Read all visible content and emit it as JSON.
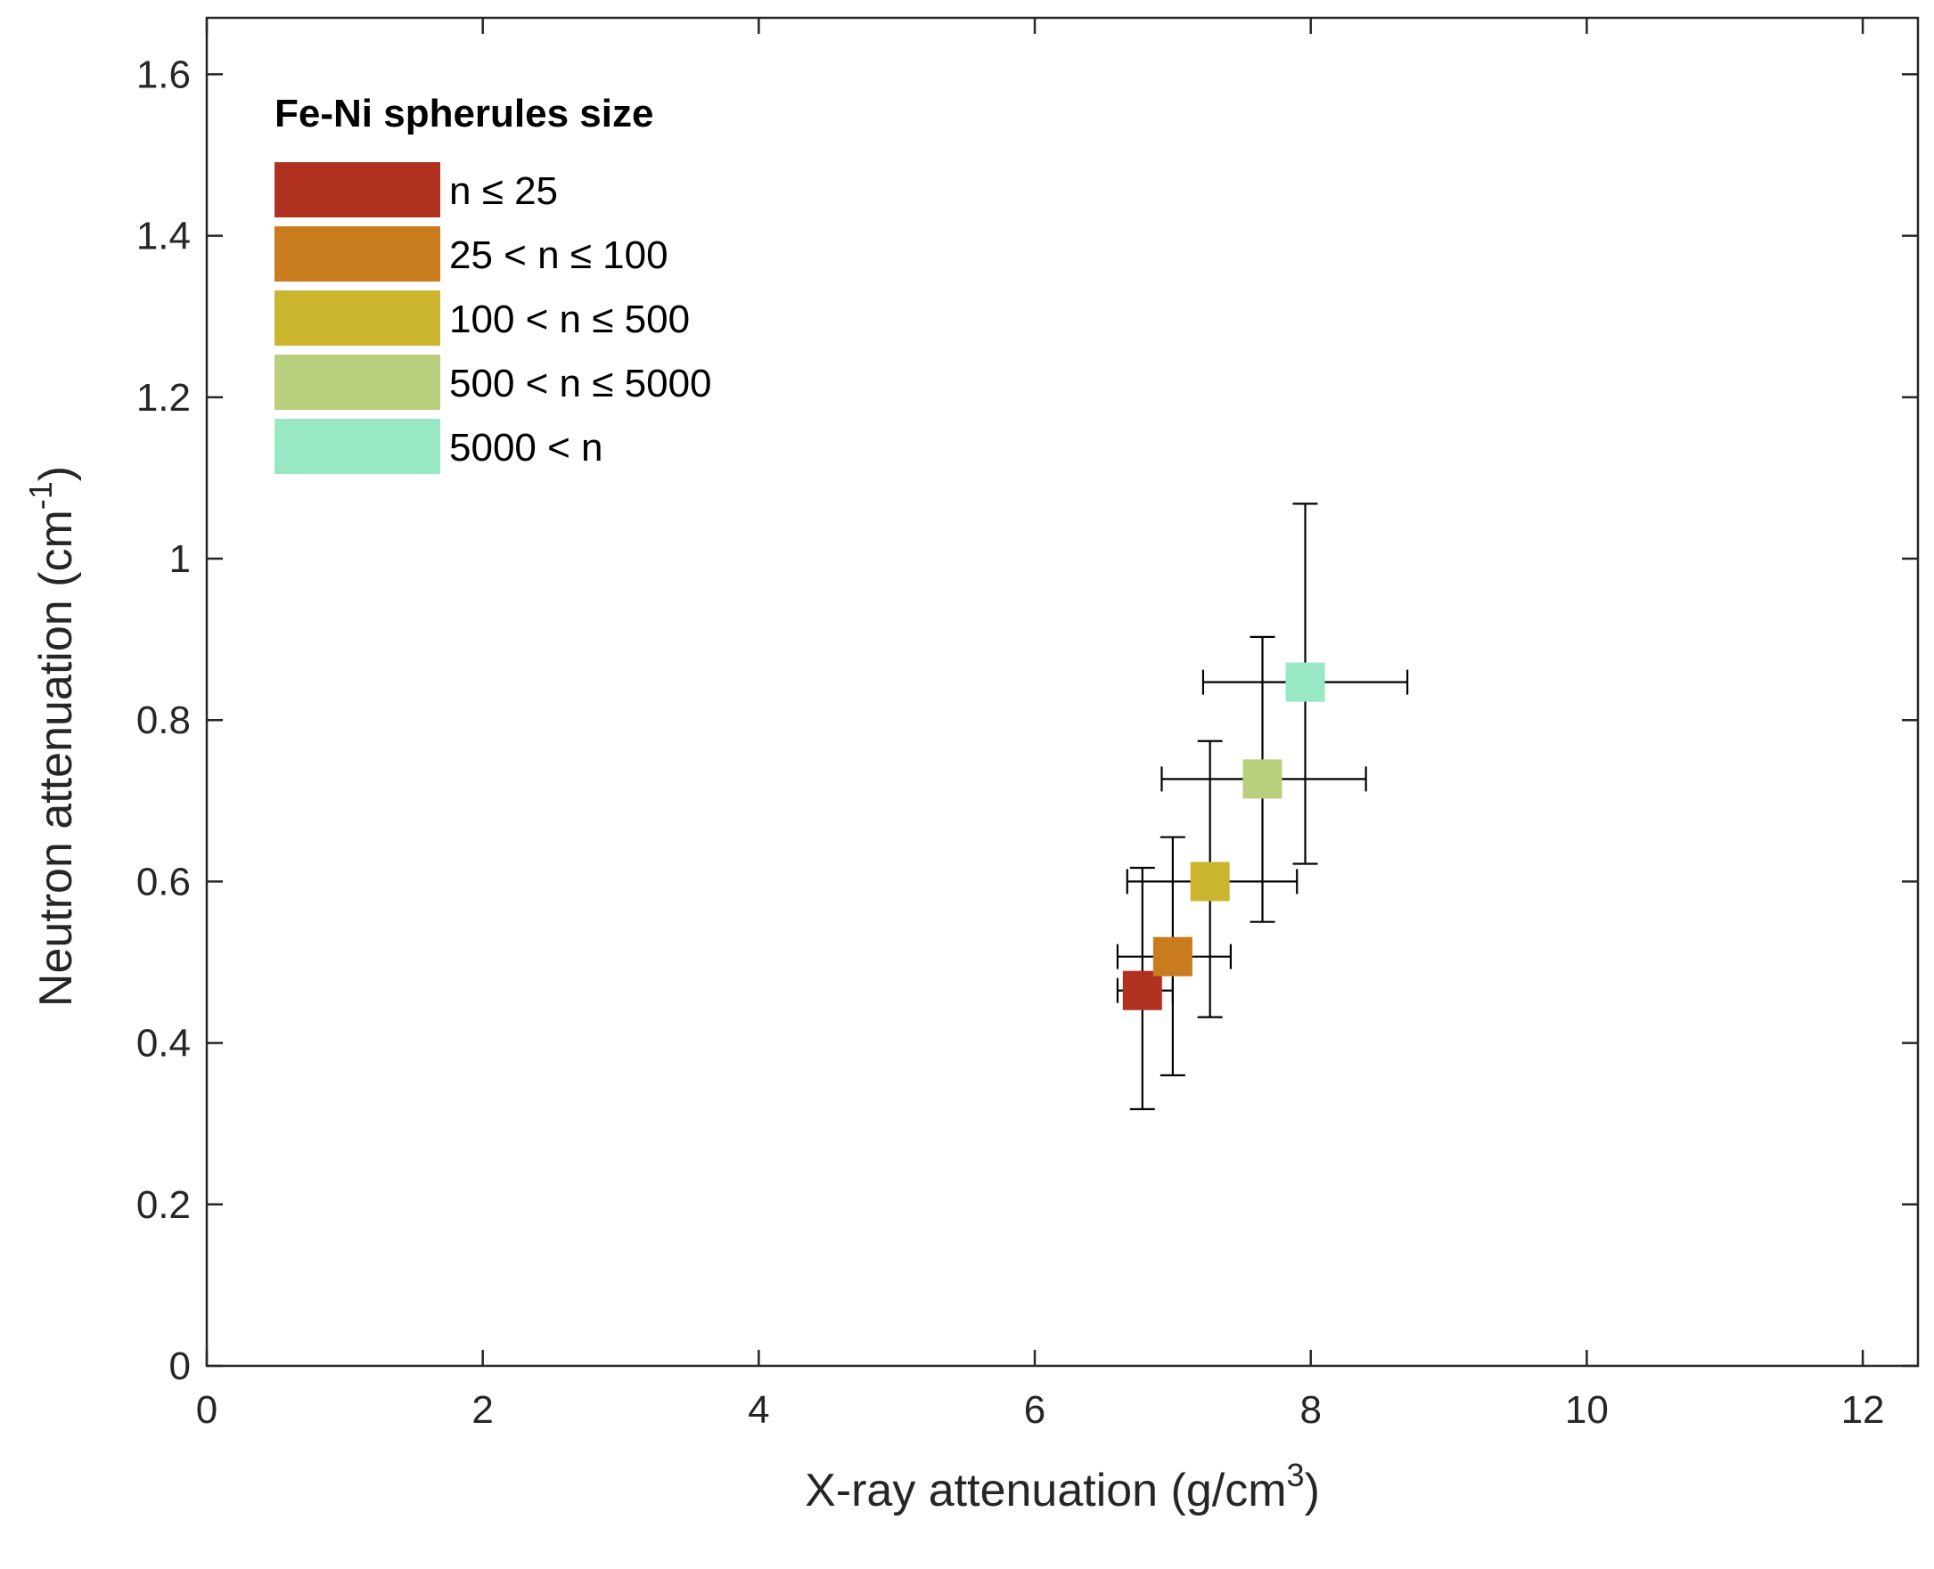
{
  "chart_data": {
    "type": "scatter",
    "xlabel": "X-ray attenuation (g/cm",
    "xlabel_superscript": "3",
    "xlabel_suffix": ")",
    "ylabel": "Neutron attenuation (cm",
    "ylabel_superscript": "-1",
    "ylabel_suffix": ")",
    "xlim": [
      0,
      12.4
    ],
    "ylim": [
      0,
      1.67
    ],
    "xticks": [
      0,
      2,
      4,
      6,
      8,
      10,
      12
    ],
    "yticks": [
      0,
      0.2,
      0.4,
      0.6,
      0.8,
      1,
      1.2,
      1.4,
      1.6
    ],
    "xtick_labels": [
      "0",
      "2",
      "4",
      "6",
      "8",
      "10",
      "12"
    ],
    "ytick_labels": [
      "0",
      "0.2",
      "0.4",
      "0.6",
      "0.8",
      "1",
      "1.2",
      "1.4",
      "1.6"
    ],
    "grid": false,
    "legend": {
      "title": "Fe-Ni spherules size",
      "placement": "top-left"
    },
    "series": [
      {
        "name": "n ≤ 25",
        "color": "#b03120",
        "x": 6.78,
        "y": 0.465,
        "xerr": [
          6.6,
          7.0
        ],
        "yerr": [
          0.318,
          0.617
        ]
      },
      {
        "name": "25 < n ≤ 100",
        "color": "#c97c1e",
        "x": 7.0,
        "y": 0.507,
        "xerr": [
          6.6,
          7.42
        ],
        "yerr": [
          0.36,
          0.655
        ]
      },
      {
        "name": "100 < n ≤ 500",
        "color": "#cbb52f",
        "x": 7.27,
        "y": 0.6,
        "xerr": [
          6.67,
          7.9
        ],
        "yerr": [
          0.432,
          0.774
        ]
      },
      {
        "name": "500 < n ≤ 5000",
        "color": "#b8cf7d",
        "x": 7.65,
        "y": 0.727,
        "xerr": [
          6.92,
          8.4
        ],
        "yerr": [
          0.55,
          0.903
        ]
      },
      {
        "name": "5000 < n",
        "color": "#98e8c6",
        "x": 7.96,
        "y": 0.847,
        "xerr": [
          7.22,
          8.7
        ],
        "yerr": [
          0.622,
          1.068
        ]
      }
    ]
  }
}
